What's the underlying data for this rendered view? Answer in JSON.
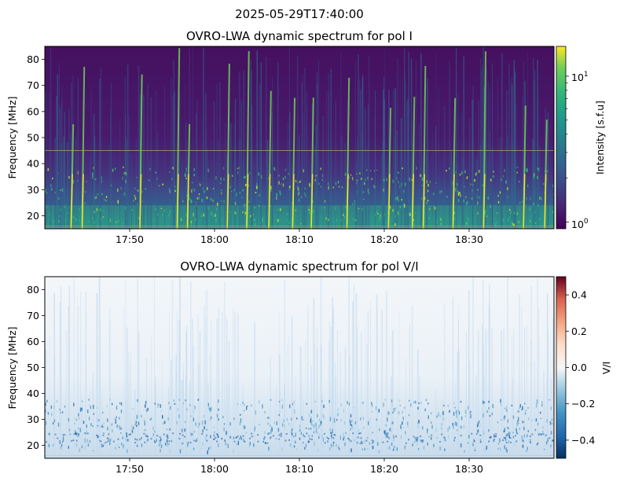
{
  "suptitle": "2025-05-29T17:40:00",
  "chart_data": [
    {
      "type": "heatmap",
      "title": "OVRO-LWA dynamic spectrum for pol I",
      "xlabel": "",
      "ylabel": "Frequency [MHz]",
      "x_ticks": [
        "17:50",
        "18:00",
        "18:10",
        "18:20",
        "18:30"
      ],
      "x_tick_minutes": [
        10,
        20,
        30,
        40,
        50
      ],
      "x_range_minutes": [
        0,
        60
      ],
      "y_ticks": [
        "20",
        "30",
        "40",
        "50",
        "60",
        "70",
        "80"
      ],
      "ylim": [
        15,
        85
      ],
      "colormap": "viridis",
      "colorbar": {
        "label": "Intensity [s.f.u]",
        "scale": "log",
        "range": [
          0.9,
          16
        ],
        "tick_labels": [
          "10",
          "1",
          "10",
          "0"
        ],
        "ticks": [
          10,
          1
        ]
      },
      "bursts_minutes": [
        3.1,
        4.4,
        11.2,
        15.6,
        16.8,
        21.5,
        23.8,
        26.4,
        29.2,
        31.4,
        35.6,
        40.5,
        43.3,
        44.6,
        48.1,
        51.7,
        56.4,
        58.9
      ],
      "lines_mhz": [
        45,
        16,
        15.5
      ]
    },
    {
      "type": "heatmap",
      "title": "OVRO-LWA dynamic spectrum for pol V/I",
      "xlabel": "",
      "ylabel": "Frequency [MHz]",
      "x_ticks": [
        "17:50",
        "18:00",
        "18:10",
        "18:20",
        "18:30"
      ],
      "x_tick_minutes": [
        10,
        20,
        30,
        40,
        50
      ],
      "x_range_minutes": [
        0,
        60
      ],
      "y_ticks": [
        "20",
        "30",
        "40",
        "50",
        "60",
        "70",
        "80"
      ],
      "ylim": [
        15,
        85
      ],
      "colormap": "RdBu_r",
      "colorbar": {
        "label": "V/I",
        "scale": "linear",
        "range": [
          -0.5,
          0.5
        ],
        "tick_labels": [
          "0.4",
          "0.2",
          "0.0",
          "−0.2",
          "−0.4"
        ],
        "ticks": [
          0.4,
          0.2,
          0.0,
          -0.2,
          -0.4
        ]
      }
    }
  ]
}
